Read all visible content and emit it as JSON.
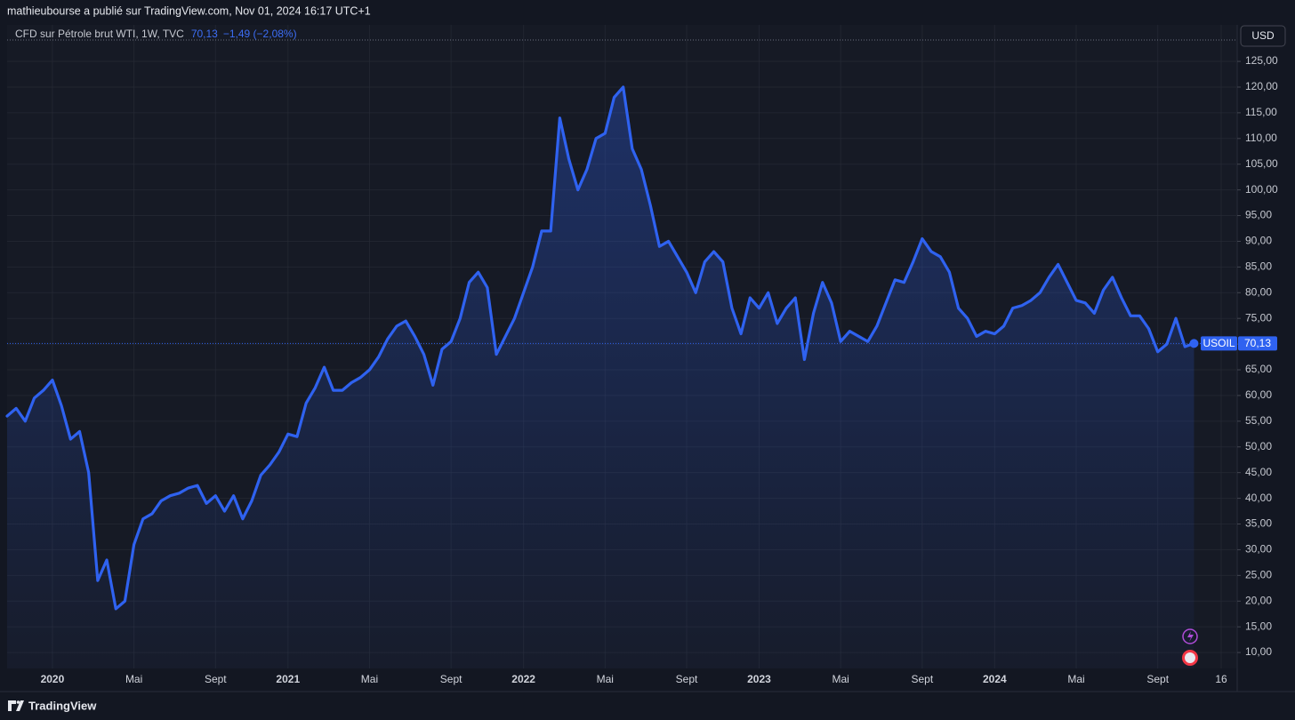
{
  "header": {
    "text": "mathieubourse a publié sur TradingView.com, Nov 01, 2024 16:17 UTC+1"
  },
  "chart_data": {
    "type": "line",
    "legend": {
      "title": "CFD sur Pétrole brut WTI, 1W, TVC",
      "last_value_label": "70,13",
      "change": "−1,49 (−2,08%)"
    },
    "currency": "USD",
    "symbol": "USOIL",
    "color": "#2f62f0",
    "grid": true,
    "ylim": [
      6.9,
      132.1
    ],
    "yticks": [
      {
        "value": 10,
        "label": "10,00"
      },
      {
        "value": 15,
        "label": "15,00"
      },
      {
        "value": 20,
        "label": "20,00"
      },
      {
        "value": 25,
        "label": "25,00"
      },
      {
        "value": 30,
        "label": "30,00"
      },
      {
        "value": 35,
        "label": "35,00"
      },
      {
        "value": 40,
        "label": "40,00"
      },
      {
        "value": 45,
        "label": "45,00"
      },
      {
        "value": 50,
        "label": "50,00"
      },
      {
        "value": 55,
        "label": "55,00"
      },
      {
        "value": 60,
        "label": "60,00"
      },
      {
        "value": 65,
        "label": "65,00"
      },
      {
        "value": 70,
        "label": "70,00"
      },
      {
        "value": 75,
        "label": "75,00"
      },
      {
        "value": 80,
        "label": "80,00"
      },
      {
        "value": 85,
        "label": "85,00"
      },
      {
        "value": 90,
        "label": "90,00"
      },
      {
        "value": 95,
        "label": "95,00"
      },
      {
        "value": 100,
        "label": "100,00"
      },
      {
        "value": 105,
        "label": "105,00"
      },
      {
        "value": 110,
        "label": "110,00"
      },
      {
        "value": 115,
        "label": "115,00"
      },
      {
        "value": 120,
        "label": "120,00"
      },
      {
        "value": 125,
        "label": "125,00"
      }
    ],
    "categories": [
      null,
      null,
      null,
      null,
      null,
      "2020",
      null,
      null,
      null,
      null,
      null,
      null,
      null,
      null,
      "Mai",
      null,
      null,
      null,
      null,
      null,
      null,
      null,
      null,
      "Sept",
      null,
      null,
      null,
      null,
      null,
      null,
      null,
      "2021",
      null,
      null,
      null,
      null,
      null,
      null,
      null,
      null,
      "Mai",
      null,
      null,
      null,
      null,
      null,
      null,
      null,
      null,
      "Sept",
      null,
      null,
      null,
      null,
      null,
      null,
      null,
      "2022",
      null,
      null,
      null,
      null,
      null,
      null,
      null,
      null,
      "Mai",
      null,
      null,
      null,
      null,
      null,
      null,
      null,
      null,
      "Sept",
      null,
      null,
      null,
      null,
      null,
      null,
      null,
      "2023",
      null,
      null,
      null,
      null,
      null,
      null,
      null,
      null,
      "Mai",
      null,
      null,
      null,
      null,
      null,
      null,
      null,
      null,
      "Sept",
      null,
      null,
      null,
      null,
      null,
      null,
      null,
      "2024",
      null,
      null,
      null,
      null,
      null,
      null,
      null,
      null,
      "Mai",
      null,
      null,
      null,
      null,
      null,
      null,
      null,
      null,
      "Sept",
      null,
      null,
      null,
      null,
      null,
      null,
      "16"
    ],
    "values": [
      56,
      57.5,
      55,
      59.5,
      61,
      63,
      58,
      51.5,
      53,
      45,
      24,
      28,
      18.5,
      20,
      31,
      36,
      37,
      39.5,
      40.5,
      41,
      42,
      42.5,
      39,
      40.5,
      37.5,
      40.5,
      36,
      39.5,
      44.5,
      46.5,
      49,
      52.5,
      52,
      58.5,
      61.5,
      65.5,
      61,
      61,
      62.5,
      63.5,
      65,
      67.5,
      71,
      73.5,
      74.5,
      71.5,
      68,
      62,
      69,
      70.5,
      75,
      82,
      84,
      81,
      68,
      71.5,
      75,
      80,
      85,
      92,
      92,
      114,
      106,
      100,
      104,
      110,
      111,
      118,
      120,
      108,
      104,
      97,
      89,
      90,
      87,
      84,
      80,
      86,
      88,
      86,
      77,
      72,
      79,
      77,
      80,
      74,
      77,
      79,
      67,
      76,
      82,
      78,
      70.5,
      72.5,
      71.5,
      70.5,
      73.5,
      78,
      82.5,
      82,
      86,
      90.5,
      88,
      87,
      84,
      77,
      75,
      71.5,
      72.5,
      72,
      73.5,
      77,
      77.5,
      78.5,
      80,
      83,
      85.5,
      82,
      78.5,
      78,
      76,
      80.5,
      83,
      79,
      75.5,
      75.5,
      73,
      68.5,
      70,
      75,
      69.5,
      70.13,
      null,
      null,
      null
    ]
  },
  "footer": {
    "brand": "TradingView"
  }
}
